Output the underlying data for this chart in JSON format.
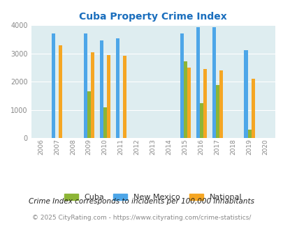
{
  "title": "Cuba Property Crime Index",
  "title_color": "#1a6ebd",
  "years": [
    2006,
    2007,
    2008,
    2009,
    2010,
    2011,
    2012,
    2013,
    2014,
    2015,
    2016,
    2017,
    2018,
    2019,
    2020
  ],
  "cuba": [
    0,
    0,
    0,
    1660,
    1090,
    0,
    0,
    0,
    0,
    2720,
    1240,
    1890,
    0,
    295,
    0
  ],
  "new_mexico": [
    0,
    3720,
    0,
    3720,
    3460,
    3530,
    0,
    0,
    0,
    3700,
    3930,
    3930,
    0,
    3110,
    0
  ],
  "national": [
    0,
    3280,
    0,
    3040,
    2950,
    2930,
    0,
    0,
    0,
    2510,
    2460,
    2390,
    0,
    2100,
    0
  ],
  "cuba_color": "#8db536",
  "nm_color": "#4da6e8",
  "nat_color": "#f5a623",
  "bg_color": "#deedf0",
  "ylim": [
    0,
    4000
  ],
  "yticks": [
    0,
    1000,
    2000,
    3000,
    4000
  ],
  "footnote1": "Crime Index corresponds to incidents per 100,000 inhabitants",
  "footnote2": "© 2025 CityRating.com - https://www.cityrating.com/crime-statistics/",
  "footnote1_color": "#222222",
  "footnote2_color": "#888888",
  "legend_labels": [
    "Cuba",
    "New Mexico",
    "National"
  ],
  "bar_width": 0.22
}
